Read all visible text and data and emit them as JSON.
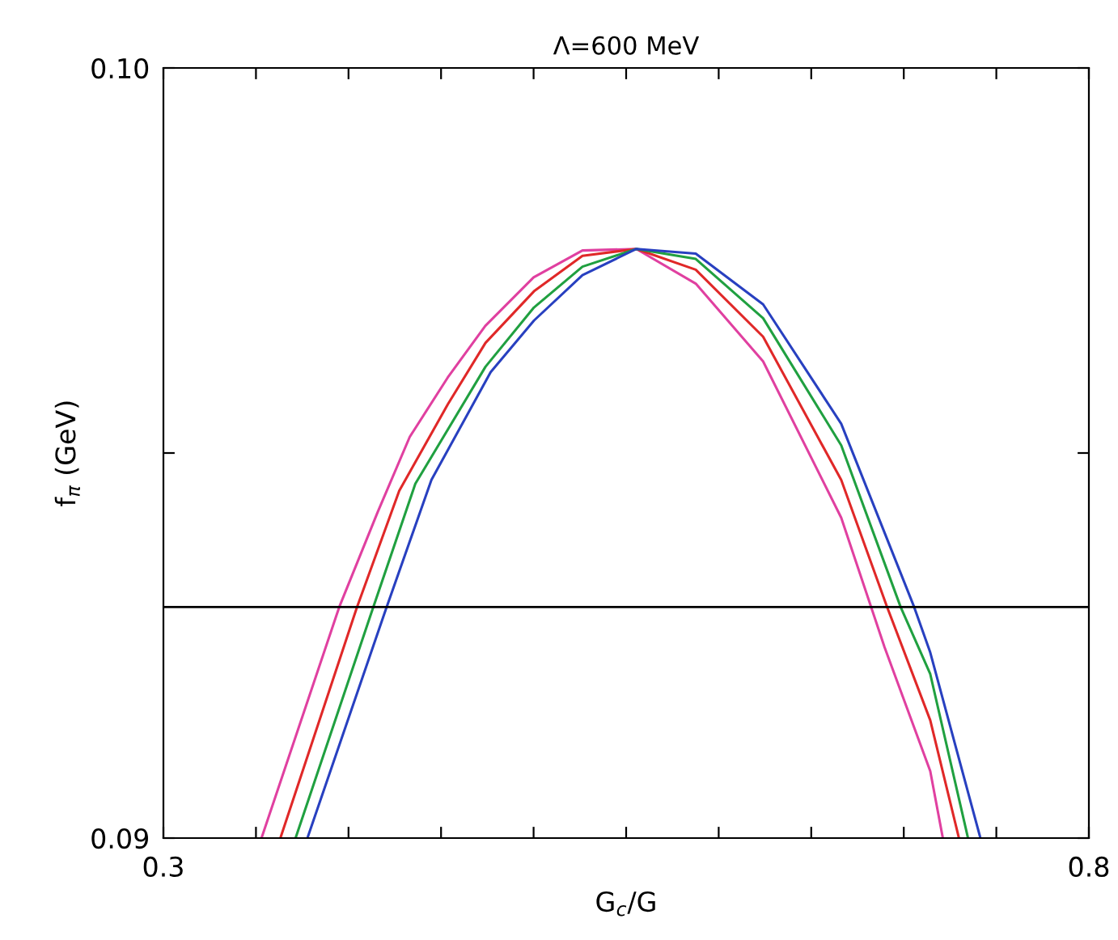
{
  "chart_data": {
    "type": "line",
    "title": "Λ=600 MeV",
    "xlabel": "G$_{c}$/G",
    "ylabel": "f$_{π}$ (GeV)",
    "xlim": [
      0.3,
      0.8
    ],
    "ylim": [
      0.09,
      0.1
    ],
    "xticks": [
      0.3,
      {
        "value": 0.35,
        "label": null
      },
      {
        "value": 0.4,
        "label": null
      },
      {
        "value": 0.45,
        "label": null
      },
      {
        "value": 0.5,
        "label": null
      },
      {
        "value": 0.55,
        "label": null
      },
      {
        "value": 0.6,
        "label": null
      },
      {
        "value": 0.65,
        "label": null
      },
      {
        "value": 0.7,
        "label": null
      },
      {
        "value": 0.75,
        "label": null
      },
      0.8
    ],
    "yticks": [
      0.09,
      {
        "value": 0.095,
        "label": null
      },
      {
        "value": 0.1,
        "label": "0.10"
      }
    ],
    "grid": false,
    "legend": false,
    "marker": "none",
    "line_style": "solid",
    "ref_lines": [
      {
        "axis": "y",
        "value": 0.093,
        "color": "#000000"
      }
    ],
    "series": [
      {
        "color": "#e040a0",
        "x": [
          0.353,
          0.395,
          0.4157,
          0.4331,
          0.4536,
          0.4739,
          0.5,
          0.5264,
          0.5555,
          0.5876,
          0.624,
          0.6662,
          0.6896,
          0.7143,
          0.7211
        ],
        "values": [
          0.09,
          0.093,
          0.09423,
          0.09521,
          0.09598,
          0.09665,
          0.09728,
          0.09763,
          0.09765,
          0.0972,
          0.09619,
          0.09416,
          0.09248,
          0.09087,
          0.09
        ]
      },
      {
        "color": "#e02828",
        "x": [
          0.3632,
          0.4046,
          0.4274,
          0.4536,
          0.474,
          0.5002,
          0.5264,
          0.5555,
          0.5876,
          0.624,
          0.6662,
          0.691,
          0.7143,
          0.7298
        ],
        "values": [
          0.09,
          0.093,
          0.09451,
          0.09563,
          0.09643,
          0.0971,
          0.09756,
          0.09765,
          0.09738,
          0.09651,
          0.09465,
          0.093,
          0.09153,
          0.09
        ]
      },
      {
        "color": "#20a040",
        "x": [
          0.3714,
          0.4134,
          0.4361,
          0.474,
          0.5002,
          0.5264,
          0.5555,
          0.5876,
          0.624,
          0.6662,
          0.6983,
          0.7143,
          0.7347
        ],
        "values": [
          0.09,
          0.093,
          0.0946,
          0.09612,
          0.09689,
          0.09742,
          0.09765,
          0.09752,
          0.09675,
          0.0951,
          0.093,
          0.09213,
          0.09
        ]
      },
      {
        "color": "#2840c0",
        "x": [
          0.3778,
          0.4206,
          0.4448,
          0.4768,
          0.5002,
          0.5264,
          0.5555,
          0.5876,
          0.624,
          0.6662,
          0.7056,
          0.7143,
          0.7414
        ],
        "values": [
          0.09,
          0.093,
          0.09465,
          0.09605,
          0.09672,
          0.09731,
          0.09765,
          0.09759,
          0.09693,
          0.09538,
          0.093,
          0.09241,
          0.09
        ]
      }
    ]
  }
}
